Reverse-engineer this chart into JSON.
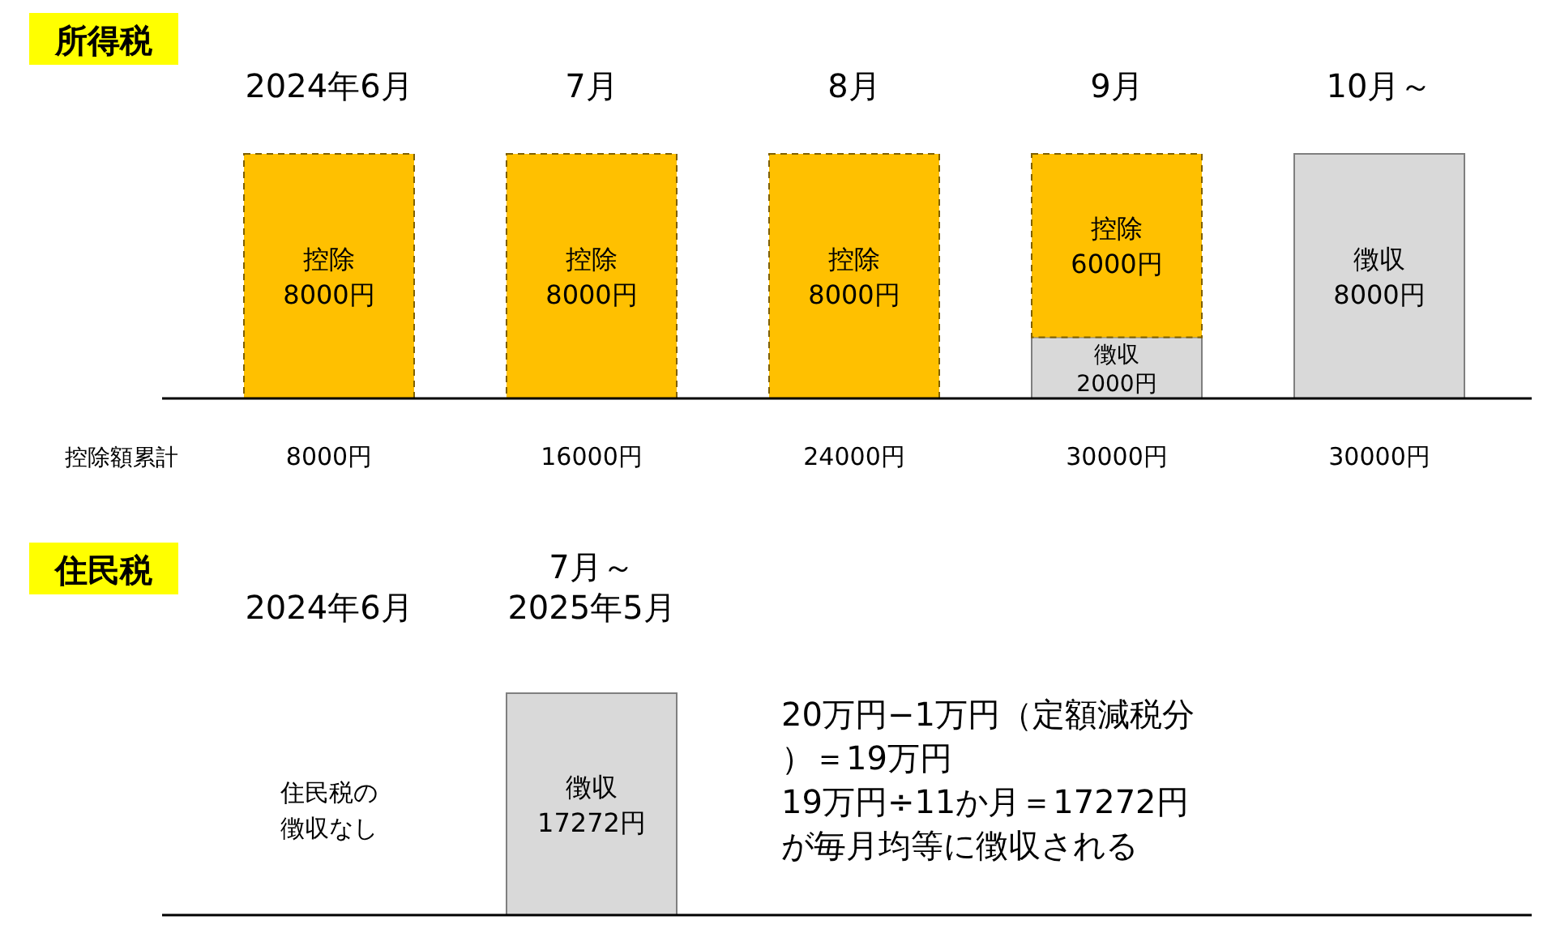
{
  "chart_data": [
    {
      "type": "bar",
      "title": "所得税",
      "stacked": true,
      "categories": [
        "2024年6月",
        "7月",
        "8月",
        "9月",
        "10月～"
      ],
      "series": [
        {
          "color": "#d9d9d9",
          "line_style": "solid",
          "values": [
            null,
            null,
            null,
            2000,
            8000
          ],
          "value_labels": [
            null,
            null,
            null,
            "徴収\n2000円",
            "徴収\n8000円"
          ]
        },
        {
          "color": "#ffc000",
          "line_style": "dashed",
          "values": [
            8000,
            8000,
            8000,
            6000,
            null
          ],
          "value_labels": [
            "控除\n8000円",
            "控除\n8000円",
            "控除\n8000円",
            "控除\n6000円",
            null
          ]
        }
      ],
      "annotations": [
        "控除額累計",
        "8000円",
        "16000円",
        "24000円",
        "30000円",
        "30000円"
      ]
    },
    {
      "type": "bar",
      "title": "住民税",
      "categories": [
        "2024年6月",
        "7月～\n2025年5月"
      ],
      "series": [
        {
          "color": "#d9d9d9",
          "line_style": "solid",
          "values": [
            null,
            17272
          ],
          "value_labels": [
            null,
            "徴収\n17272円"
          ]
        }
      ],
      "annotations": [
        "住民税の徴収なし",
        "20万円−1万円（定額減税分）＝19万円",
        "19万円÷11か月＝17272円が毎月均等に徴収される"
      ]
    }
  ]
}
